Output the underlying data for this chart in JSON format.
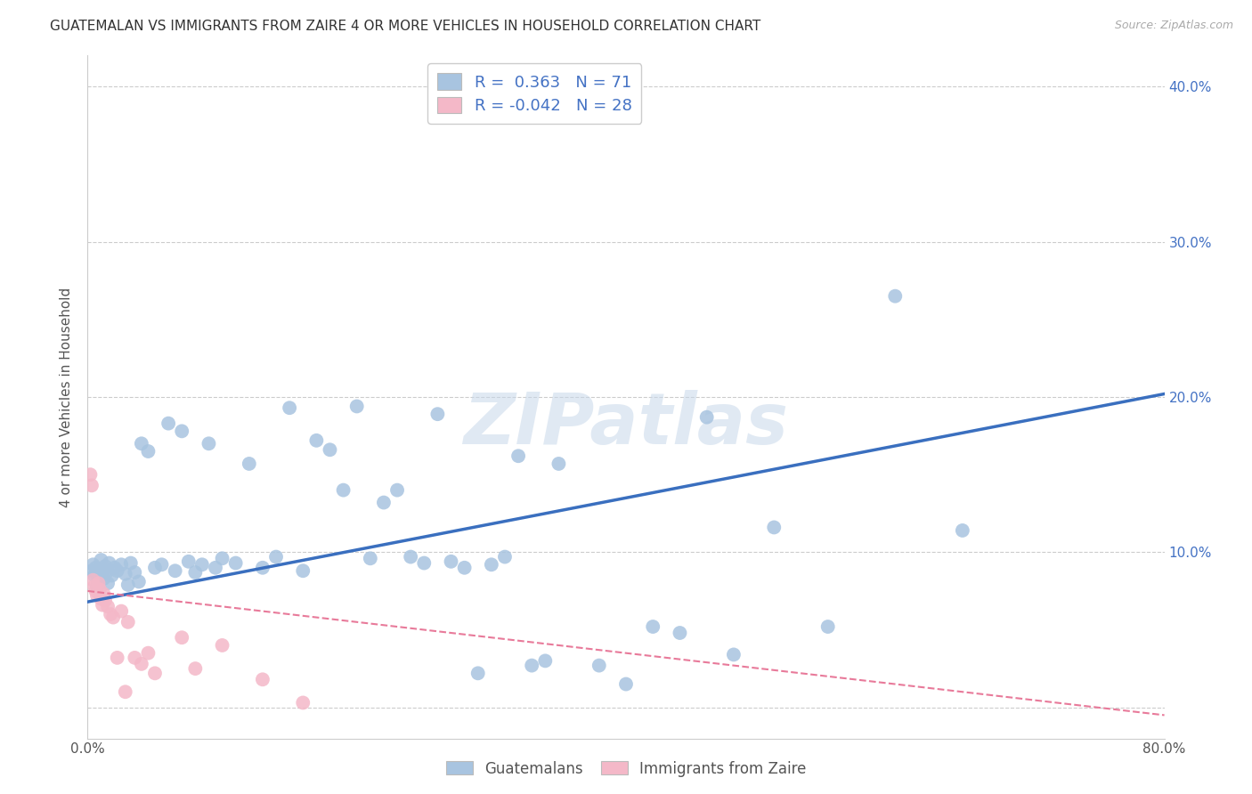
{
  "title": "GUATEMALAN VS IMMIGRANTS FROM ZAIRE 4 OR MORE VEHICLES IN HOUSEHOLD CORRELATION CHART",
  "source": "Source: ZipAtlas.com",
  "ylabel": "4 or more Vehicles in Household",
  "xlim": [
    0.0,
    0.8
  ],
  "ylim": [
    -0.02,
    0.42
  ],
  "xticks": [
    0.0,
    0.1,
    0.2,
    0.3,
    0.4,
    0.5,
    0.6,
    0.7,
    0.8
  ],
  "xticklabels": [
    "0.0%",
    "",
    "",
    "",
    "",
    "",
    "",
    "",
    "80.0%"
  ],
  "yticks": [
    0.0,
    0.1,
    0.2,
    0.3,
    0.4
  ],
  "yticklabels_right": [
    "",
    "10.0%",
    "20.0%",
    "30.0%",
    "40.0%"
  ],
  "blue_R": 0.363,
  "blue_N": 71,
  "pink_R": -0.042,
  "pink_N": 28,
  "blue_color": "#a8c4e0",
  "pink_color": "#f4b8c8",
  "blue_line_color": "#3a6fbf",
  "pink_line_color": "#e87a9a",
  "legend_label_blue": "Guatemalans",
  "legend_label_pink": "Immigrants from Zaire",
  "watermark": "ZIPatlas",
  "blue_x": [
    0.003,
    0.004,
    0.005,
    0.006,
    0.007,
    0.008,
    0.009,
    0.01,
    0.011,
    0.012,
    0.013,
    0.014,
    0.015,
    0.016,
    0.018,
    0.02,
    0.022,
    0.025,
    0.028,
    0.03,
    0.032,
    0.035,
    0.038,
    0.04,
    0.045,
    0.05,
    0.055,
    0.06,
    0.065,
    0.07,
    0.075,
    0.08,
    0.085,
    0.09,
    0.095,
    0.1,
    0.11,
    0.12,
    0.13,
    0.14,
    0.15,
    0.16,
    0.17,
    0.18,
    0.19,
    0.2,
    0.21,
    0.22,
    0.23,
    0.24,
    0.25,
    0.26,
    0.27,
    0.28,
    0.29,
    0.3,
    0.31,
    0.32,
    0.33,
    0.34,
    0.35,
    0.38,
    0.4,
    0.42,
    0.44,
    0.46,
    0.48,
    0.51,
    0.55,
    0.6,
    0.65
  ],
  "blue_y": [
    0.088,
    0.092,
    0.085,
    0.09,
    0.078,
    0.082,
    0.086,
    0.095,
    0.089,
    0.083,
    0.091,
    0.087,
    0.08,
    0.093,
    0.085,
    0.09,
    0.088,
    0.092,
    0.086,
    0.079,
    0.093,
    0.087,
    0.081,
    0.17,
    0.165,
    0.09,
    0.092,
    0.183,
    0.088,
    0.178,
    0.094,
    0.087,
    0.092,
    0.17,
    0.09,
    0.096,
    0.093,
    0.157,
    0.09,
    0.097,
    0.193,
    0.088,
    0.172,
    0.166,
    0.14,
    0.194,
    0.096,
    0.132,
    0.14,
    0.097,
    0.093,
    0.189,
    0.094,
    0.09,
    0.022,
    0.092,
    0.097,
    0.162,
    0.027,
    0.03,
    0.157,
    0.027,
    0.015,
    0.052,
    0.048,
    0.187,
    0.034,
    0.116,
    0.052,
    0.265,
    0.114
  ],
  "pink_x": [
    0.002,
    0.003,
    0.004,
    0.005,
    0.006,
    0.007,
    0.008,
    0.009,
    0.01,
    0.011,
    0.012,
    0.013,
    0.015,
    0.017,
    0.019,
    0.022,
    0.025,
    0.028,
    0.03,
    0.035,
    0.04,
    0.045,
    0.05,
    0.07,
    0.08,
    0.1,
    0.13,
    0.16
  ],
  "pink_y": [
    0.15,
    0.143,
    0.082,
    0.078,
    0.075,
    0.072,
    0.08,
    0.076,
    0.07,
    0.066,
    0.073,
    0.069,
    0.065,
    0.06,
    0.058,
    0.032,
    0.062,
    0.01,
    0.055,
    0.032,
    0.028,
    0.035,
    0.022,
    0.045,
    0.025,
    0.04,
    0.018,
    0.003
  ]
}
